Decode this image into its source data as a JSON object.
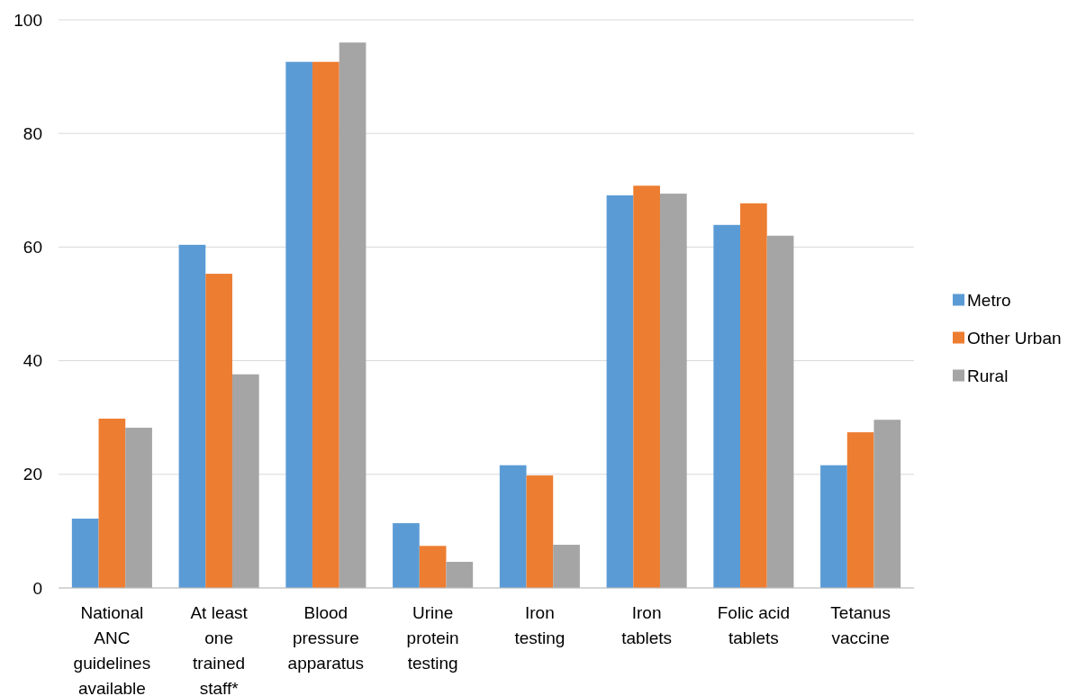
{
  "chart_data": {
    "type": "bar",
    "categories": [
      "National ANC guidelines available",
      "At least one trained staff*",
      "Blood pressure apparatus",
      "Urine protein testing",
      "Iron testing",
      "Iron tablets",
      "Folic acid tablets",
      "Tetanus vaccine"
    ],
    "series": [
      {
        "name": "Metro",
        "color": "#5b9bd5",
        "values": [
          12.2,
          60.4,
          92.6,
          11.4,
          21.6,
          69.1,
          63.9,
          21.6
        ]
      },
      {
        "name": "Other Urban",
        "color": "#ed7d31",
        "values": [
          29.8,
          55.3,
          92.6,
          7.4,
          19.8,
          70.8,
          67.7,
          27.4
        ]
      },
      {
        "name": "Rural",
        "color": "#a5a5a5",
        "values": [
          28.2,
          37.6,
          96.0,
          4.6,
          7.6,
          69.4,
          62.0,
          29.6
        ]
      }
    ],
    "ylim": [
      0,
      100
    ],
    "yticks": [
      0,
      20,
      40,
      60,
      80,
      100
    ],
    "grid": "y",
    "legend": "right"
  }
}
